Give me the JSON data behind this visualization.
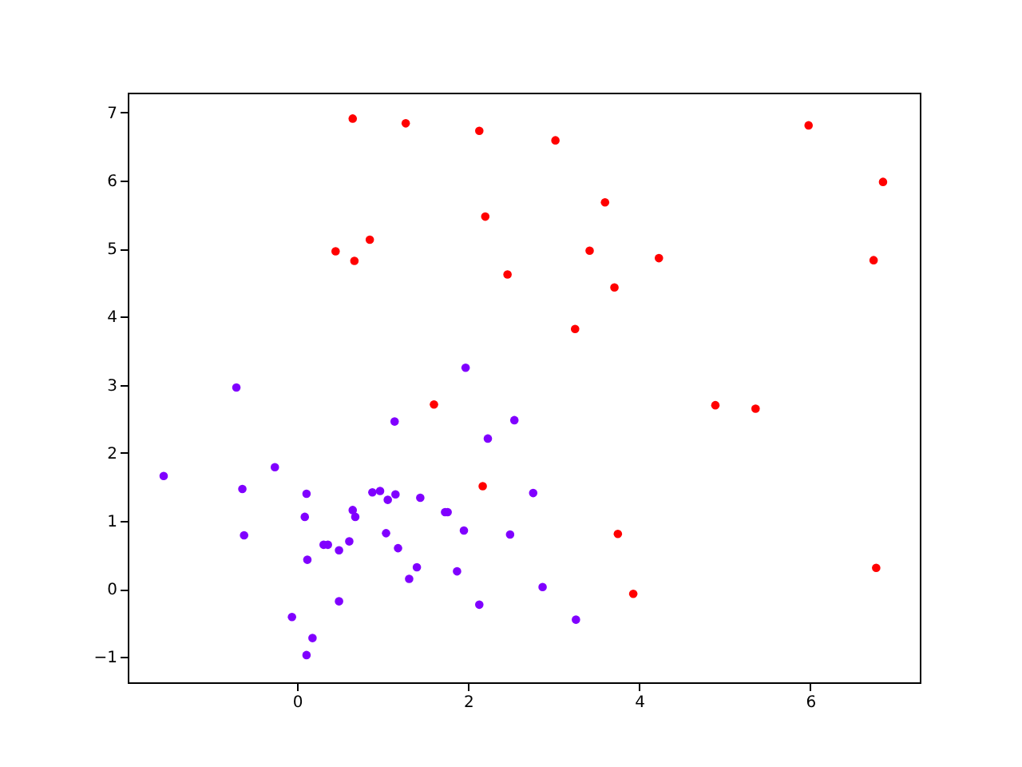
{
  "chart_data": {
    "type": "scatter",
    "xlim": [
      -1.98,
      7.28
    ],
    "ylim": [
      -1.37,
      7.29
    ],
    "xticks": [
      0,
      2,
      4,
      6
    ],
    "yticks": [
      -1,
      0,
      1,
      2,
      3,
      4,
      5,
      6,
      7
    ],
    "grid": false,
    "marker": "circle",
    "series": [
      {
        "color": "#8000ff",
        "x": [
          1.97,
          -0.71,
          1.14,
          2.54,
          2.23,
          -1.56,
          -0.26,
          -0.64,
          0.11,
          0.09,
          -0.62,
          0.88,
          0.97,
          1.06,
          1.15,
          1.44,
          0.65,
          0.68,
          1.73,
          1.76,
          1.95,
          2.49,
          2.76,
          1.04,
          1.18,
          0.31,
          0.36,
          0.61,
          0.49,
          0.12,
          1.4,
          1.31,
          1.87,
          0.49,
          -0.06,
          0.18,
          0.11,
          2.13,
          2.87,
          3.26
        ],
        "values": [
          3.25,
          2.96,
          2.46,
          2.48,
          2.21,
          1.66,
          1.79,
          1.47,
          1.4,
          1.06,
          0.79,
          1.42,
          1.44,
          1.31,
          1.39,
          1.34,
          1.16,
          1.06,
          1.13,
          1.13,
          0.86,
          0.8,
          1.41,
          0.82,
          0.6,
          0.65,
          0.65,
          0.7,
          0.57,
          0.43,
          0.32,
          0.15,
          0.26,
          -0.18,
          -0.41,
          -0.72,
          -0.97,
          -0.23,
          0.03,
          -0.45
        ]
      },
      {
        "color": "#ff0000",
        "x": [
          0.65,
          1.27,
          2.13,
          3.02,
          5.98,
          6.85,
          3.6,
          2.2,
          0.85,
          0.45,
          0.67,
          3.42,
          4.23,
          6.74,
          2.46,
          3.71,
          3.25,
          4.89,
          5.36,
          2.17,
          3.75,
          3.93,
          6.77,
          1.6
        ],
        "values": [
          6.91,
          6.84,
          6.73,
          6.59,
          6.81,
          5.98,
          5.68,
          5.47,
          5.13,
          4.96,
          4.82,
          4.97,
          4.86,
          4.83,
          4.62,
          4.43,
          3.82,
          2.7,
          2.65,
          1.51,
          0.81,
          -0.07,
          0.31,
          2.71
        ]
      }
    ]
  }
}
